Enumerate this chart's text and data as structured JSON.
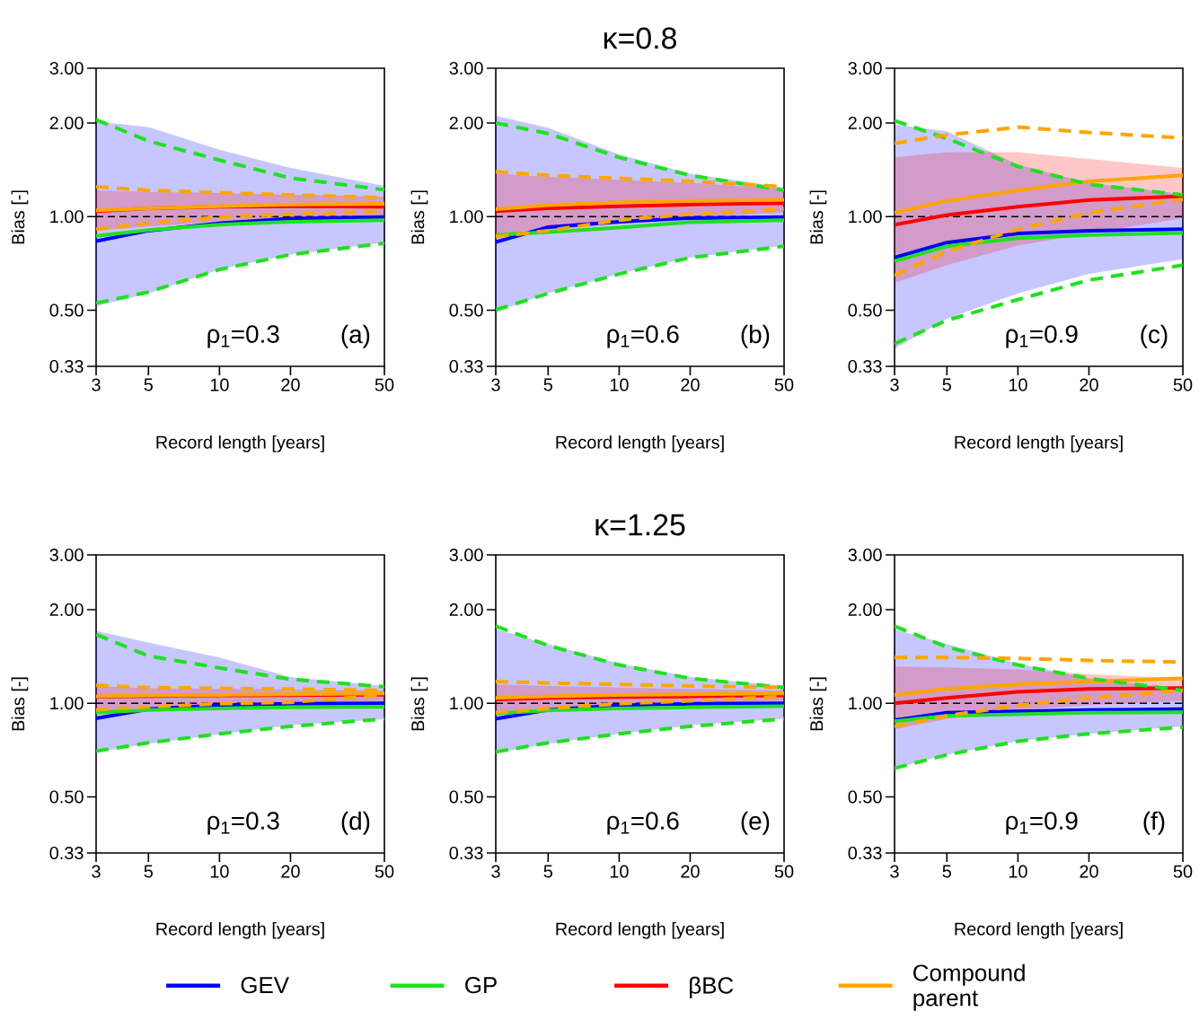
{
  "chart_data": [
    {
      "type": "line",
      "x": [
        3,
        5,
        10,
        20,
        50
      ],
      "xlim": [
        3,
        50
      ],
      "ylim": [
        0.33,
        3
      ],
      "xticks": [
        3,
        5,
        10,
        20,
        50
      ],
      "yticks": [
        {
          "value": 0.33,
          "label": "0.33"
        },
        {
          "value": 0.5,
          "label": "0.50"
        },
        {
          "value": 1,
          "label": "1.00"
        },
        {
          "value": 2,
          "label": "2.00"
        },
        {
          "value": 3,
          "label": "3.00"
        }
      ],
      "log": "xy",
      "xlabel": "Record length [years]",
      "ylabel": "Bias [-]",
      "ref_lines": [
        {
          "axis": "y",
          "value": 1,
          "color": "#000000",
          "line_style": "dashed"
        }
      ],
      "annotations": [
        "ρ$_{1}$=0.3",
        "(a)"
      ],
      "series": [
        {
          "color": "#0000ff",
          "values": [
            0.834,
            0.901,
            0.952,
            0.985,
            0.996
          ],
          "lower": [
            0.515,
            0.566,
            0.676,
            0.755,
            0.825
          ],
          "upper": [
            2.02,
            1.94,
            1.64,
            1.435,
            1.256
          ]
        },
        {
          "color": "#20e020",
          "values": [
            0.866,
            0.905,
            0.942,
            0.963,
            0.974
          ]
        },
        {
          "color": "#ff0000",
          "values": [
            1.04,
            1.064,
            1.076,
            1.08,
            1.076
          ],
          "lower": [
            0.9,
            0.93,
            0.963,
            0.985,
            1.007
          ],
          "upper": [
            1.215,
            1.2,
            1.19,
            1.175,
            1.16
          ]
        },
        {
          "color": "#ffa500",
          "values": [
            1.047,
            1.064,
            1.08,
            1.093,
            1.1
          ]
        },
        {
          "color": "#20e020",
          "line_style": "dashed",
          "values": [
            2.05,
            1.75,
            1.52,
            1.33,
            1.22
          ]
        },
        {
          "color": "#20e020",
          "line_style": "dashed",
          "values": [
            0.527,
            0.572,
            0.676,
            0.755,
            0.821
          ]
        },
        {
          "color": "#ffa500",
          "line_style": "dashed",
          "values": [
            1.248,
            1.215,
            1.194,
            1.175,
            1.15
          ]
        },
        {
          "color": "#ffa500",
          "line_style": "dashed",
          "values": [
            0.911,
            0.952,
            0.996,
            1.018,
            1.04
          ]
        }
      ]
    },
    {
      "type": "line",
      "title": "κ=0.8",
      "x": [
        3,
        5,
        10,
        20,
        50
      ],
      "xlim": [
        3,
        50
      ],
      "ylim": [
        0.33,
        3
      ],
      "xticks": [
        3,
        5,
        10,
        20,
        50
      ],
      "yticks": [
        {
          "value": 0.33,
          "label": "0.33"
        },
        {
          "value": 0.5,
          "label": "0.50"
        },
        {
          "value": 1,
          "label": "1.00"
        },
        {
          "value": 2,
          "label": "2.00"
        },
        {
          "value": 3,
          "label": "3.00"
        }
      ],
      "log": "xy",
      "xlabel": "Record length [years]",
      "ylabel": "Bias [-]",
      "ref_lines": [
        {
          "axis": "y",
          "value": 1,
          "color": "#000000",
          "line_style": "dashed"
        }
      ],
      "annotations": [
        "ρ$_{1}$=0.6",
        "(b)"
      ],
      "series": [
        {
          "color": "#0000ff",
          "values": [
            0.828,
            0.925,
            0.963,
            0.989,
            0.996
          ],
          "lower": [
            0.494,
            0.566,
            0.654,
            0.738,
            0.807
          ],
          "upper": [
            2.11,
            1.93,
            1.585,
            1.373,
            1.242
          ]
        },
        {
          "color": "#20e020",
          "values": [
            0.872,
            0.891,
            0.921,
            0.959,
            0.974
          ]
        },
        {
          "color": "#ff0000",
          "values": [
            1.04,
            1.064,
            1.08,
            1.093,
            1.105
          ],
          "lower": [
            0.853,
            0.901,
            0.959,
            0.996,
            1.029
          ],
          "upper": [
            1.373,
            1.342,
            1.313,
            1.284,
            1.229
          ]
        },
        {
          "color": "#ffa500",
          "values": [
            1.057,
            1.088,
            1.112,
            1.124,
            1.132
          ]
        },
        {
          "color": "#20e020",
          "line_style": "dashed",
          "values": [
            2.0,
            1.85,
            1.55,
            1.357,
            1.215
          ]
        },
        {
          "color": "#20e020",
          "line_style": "dashed",
          "values": [
            0.501,
            0.566,
            0.654,
            0.738,
            0.803
          ]
        },
        {
          "color": "#ffa500",
          "line_style": "dashed",
          "values": [
            1.394,
            1.357,
            1.328,
            1.299,
            1.248
          ]
        },
        {
          "color": "#ffa500",
          "line_style": "dashed",
          "values": [
            0.862,
            0.901,
            0.974,
            1.018,
            1.057
          ]
        }
      ]
    },
    {
      "type": "line",
      "x": [
        3,
        5,
        10,
        20,
        50
      ],
      "xlim": [
        3,
        50
      ],
      "ylim": [
        0.33,
        3
      ],
      "xticks": [
        3,
        5,
        10,
        20,
        50
      ],
      "yticks": [
        {
          "value": 0.33,
          "label": "0.33"
        },
        {
          "value": 0.5,
          "label": "0.50"
        },
        {
          "value": 1,
          "label": "1.00"
        },
        {
          "value": 2,
          "label": "2.00"
        },
        {
          "value": 3,
          "label": "3.00"
        }
      ],
      "log": "xy",
      "xlabel": "Record length [years]",
      "ylabel": "Bias [-]",
      "ref_lines": [
        {
          "axis": "y",
          "value": 1,
          "color": "#000000",
          "line_style": "dashed"
        }
      ],
      "annotations": [
        "ρ$_{1}$=0.9",
        "(c)"
      ],
      "series": [
        {
          "color": "#0000ff",
          "values": [
            0.738,
            0.825,
            0.882,
            0.901,
            0.911
          ],
          "lower": [
            0.376,
            0.469,
            0.566,
            0.654,
            0.73
          ],
          "upper": [
            1.98,
            1.88,
            1.467,
            1.284,
            1.18
          ]
        },
        {
          "color": "#20e020",
          "values": [
            0.719,
            0.803,
            0.853,
            0.872,
            0.885
          ]
        },
        {
          "color": "#ff0000",
          "values": [
            0.942,
            1.011,
            1.076,
            1.13,
            1.163
          ],
          "lower": [
            0.612,
            0.698,
            0.807,
            0.882,
            0.989
          ],
          "upper": [
            1.55,
            1.61,
            1.61,
            1.533,
            1.435
          ]
        },
        {
          "color": "#ffa500",
          "values": [
            1.029,
            1.124,
            1.215,
            1.299,
            1.357
          ]
        },
        {
          "color": "#20e020",
          "line_style": "dashed",
          "values": [
            2.036,
            1.783,
            1.45,
            1.27,
            1.175
          ]
        },
        {
          "color": "#20e020",
          "line_style": "dashed",
          "values": [
            0.39,
            0.464,
            0.541,
            0.625,
            0.698
          ]
        },
        {
          "color": "#ffa500",
          "line_style": "dashed",
          "values": [
            1.72,
            1.83,
            1.94,
            1.864,
            1.79
          ]
        },
        {
          "color": "#ffa500",
          "line_style": "dashed",
          "values": [
            0.647,
            0.772,
            0.911,
            1.029,
            1.137
          ]
        }
      ]
    },
    {
      "type": "line",
      "x": [
        3,
        5,
        10,
        20,
        50
      ],
      "xlim": [
        3,
        50
      ],
      "ylim": [
        0.33,
        3
      ],
      "xticks": [
        3,
        5,
        10,
        20,
        50
      ],
      "yticks": [
        {
          "value": 0.33,
          "label": "0.33"
        },
        {
          "value": 0.5,
          "label": "0.50"
        },
        {
          "value": 1,
          "label": "1.00"
        },
        {
          "value": 2,
          "label": "2.00"
        },
        {
          "value": 3,
          "label": "3.00"
        }
      ],
      "log": "xy",
      "xlabel": "Record length [years]",
      "ylabel": "Bias [-]",
      "ref_lines": [
        {
          "axis": "y",
          "value": 1,
          "color": "#000000",
          "line_style": "dashed"
        }
      ],
      "annotations": [
        "ρ$_{1}$=0.3",
        "(d)"
      ],
      "series": [
        {
          "color": "#0000ff",
          "values": [
            0.895,
            0.957,
            0.985,
            0.996,
            1.0
          ],
          "lower": [
            0.695,
            0.742,
            0.795,
            0.85,
            0.888
          ],
          "upper": [
            1.712,
            1.567,
            1.403,
            1.215,
            1.137
          ]
        },
        {
          "color": "#20e020",
          "values": [
            0.932,
            0.952,
            0.963,
            0.97,
            0.974
          ]
        },
        {
          "color": "#ff0000",
          "values": [
            1.05,
            1.055,
            1.06,
            1.062,
            1.065
          ],
          "lower": [
            0.932,
            0.969,
            0.991,
            1.0,
            1.018
          ],
          "upper": [
            1.137,
            1.117,
            1.112,
            1.107,
            1.1
          ]
        },
        {
          "color": "#ffa500",
          "values": [
            1.052,
            1.059,
            1.064,
            1.069,
            1.076
          ]
        },
        {
          "color": "#20e020",
          "line_style": "dashed",
          "values": [
            1.664,
            1.419,
            1.299,
            1.194,
            1.13
          ]
        },
        {
          "color": "#20e020",
          "line_style": "dashed",
          "values": [
            0.702,
            0.746,
            0.798,
            0.843,
            0.891
          ]
        },
        {
          "color": "#ffa500",
          "line_style": "dashed",
          "values": [
            1.142,
            1.124,
            1.117,
            1.112,
            1.1
          ]
        },
        {
          "color": "#ffa500",
          "line_style": "dashed",
          "values": [
            0.952,
            0.974,
            0.996,
            1.007,
            1.064
          ]
        }
      ]
    },
    {
      "type": "line",
      "title": "κ=1.25",
      "legend": "bottom",
      "x": [
        3,
        5,
        10,
        20,
        50
      ],
      "xlim": [
        3,
        50
      ],
      "ylim": [
        0.33,
        3
      ],
      "xticks": [
        3,
        5,
        10,
        20,
        50
      ],
      "yticks": [
        {
          "value": 0.33,
          "label": "0.33"
        },
        {
          "value": 0.5,
          "label": "0.50"
        },
        {
          "value": 1,
          "label": "1.00"
        },
        {
          "value": 2,
          "label": "2.00"
        },
        {
          "value": 3,
          "label": "3.00"
        }
      ],
      "log": "xy",
      "xlabel": "Record length [years]",
      "ylabel": "Bias [-]",
      "ref_lines": [
        {
          "axis": "y",
          "value": 1,
          "color": "#000000",
          "line_style": "dashed"
        }
      ],
      "annotations": [
        "ρ$_{1}$=0.6",
        "(e)"
      ],
      "series": [
        {
          "name": "GEV",
          "color": "#0000ff",
          "values": [
            0.891,
            0.952,
            0.985,
            0.996,
            1.0
          ],
          "lower": [
            0.691,
            0.742,
            0.798,
            0.849,
            0.891
          ],
          "upper": [
            1.73,
            1.55,
            1.342,
            1.215,
            1.137
          ]
        },
        {
          "name": "GP",
          "color": "#20e020",
          "values": [
            0.928,
            0.948,
            0.963,
            0.97,
            0.978
          ]
        },
        {
          "name": "βBC",
          "color": "#ff0000",
          "values": [
            1.029,
            1.041,
            1.047,
            1.052,
            1.059
          ],
          "lower": [
            0.911,
            0.952,
            0.985,
            1.0,
            1.018
          ],
          "upper": [
            1.15,
            1.137,
            1.124,
            1.112,
            1.1
          ]
        },
        {
          "name": "Compound parent",
          "color": "#ffa500",
          "values": [
            1.041,
            1.052,
            1.064,
            1.069,
            1.076
          ]
        },
        {
          "color": "#20e020",
          "line_style": "dashed",
          "values": [
            1.77,
            1.533,
            1.328,
            1.202,
            1.124
          ]
        },
        {
          "color": "#20e020",
          "line_style": "dashed",
          "values": [
            0.698,
            0.746,
            0.798,
            0.843,
            0.891
          ]
        },
        {
          "color": "#ffa500",
          "line_style": "dashed",
          "values": [
            1.175,
            1.162,
            1.15,
            1.137,
            1.124
          ]
        },
        {
          "color": "#ffa500",
          "line_style": "dashed",
          "values": [
            0.932,
            0.963,
            0.996,
            1.018,
            1.052
          ]
        }
      ]
    },
    {
      "type": "line",
      "x": [
        3,
        5,
        10,
        20,
        50
      ],
      "xlim": [
        3,
        50
      ],
      "ylim": [
        0.33,
        3
      ],
      "xticks": [
        3,
        5,
        10,
        20,
        50
      ],
      "yticks": [
        {
          "value": 0.33,
          "label": "0.33"
        },
        {
          "value": 0.5,
          "label": "0.50"
        },
        {
          "value": 1,
          "label": "1.00"
        },
        {
          "value": 2,
          "label": "2.00"
        },
        {
          "value": 3,
          "label": "3.00"
        }
      ],
      "log": "xy",
      "xlabel": "Record length [years]",
      "ylabel": "Bias [-]",
      "ref_lines": [
        {
          "axis": "y",
          "value": 1,
          "color": "#000000",
          "line_style": "dashed"
        }
      ],
      "annotations": [
        "ρ$_{1}$=0.9",
        "(f)"
      ],
      "series": [
        {
          "color": "#0000ff",
          "values": [
            0.882,
            0.932,
            0.942,
            0.952,
            0.957
          ],
          "lower": [
            0.618,
            0.683,
            0.755,
            0.798,
            0.843
          ],
          "upper": [
            1.73,
            1.55,
            1.342,
            1.202,
            1.112
          ]
        },
        {
          "color": "#20e020",
          "values": [
            0.876,
            0.911,
            0.921,
            0.932,
            0.936
          ]
        },
        {
          "color": "#ff0000",
          "values": [
            1.0,
            1.041,
            1.088,
            1.112,
            1.12
          ],
          "lower": [
            0.825,
            0.891,
            0.952,
            0.985,
            1.018
          ],
          "upper": [
            1.313,
            1.304,
            1.284,
            1.242,
            1.202
          ]
        },
        {
          "color": "#ffa500",
          "values": [
            1.064,
            1.112,
            1.15,
            1.175,
            1.202
          ]
        },
        {
          "color": "#20e020",
          "line_style": "dashed",
          "values": [
            1.77,
            1.516,
            1.328,
            1.202,
            1.1
          ]
        },
        {
          "color": "#20e020",
          "line_style": "dashed",
          "values": [
            0.618,
            0.683,
            0.755,
            0.798,
            0.838
          ]
        },
        {
          "color": "#ffa500",
          "line_style": "dashed",
          "values": [
            1.403,
            1.403,
            1.394,
            1.373,
            1.357
          ]
        },
        {
          "color": "#ffa500",
          "line_style": "dashed",
          "values": [
            0.843,
            0.911,
            0.985,
            1.041,
            1.1
          ]
        }
      ]
    }
  ]
}
